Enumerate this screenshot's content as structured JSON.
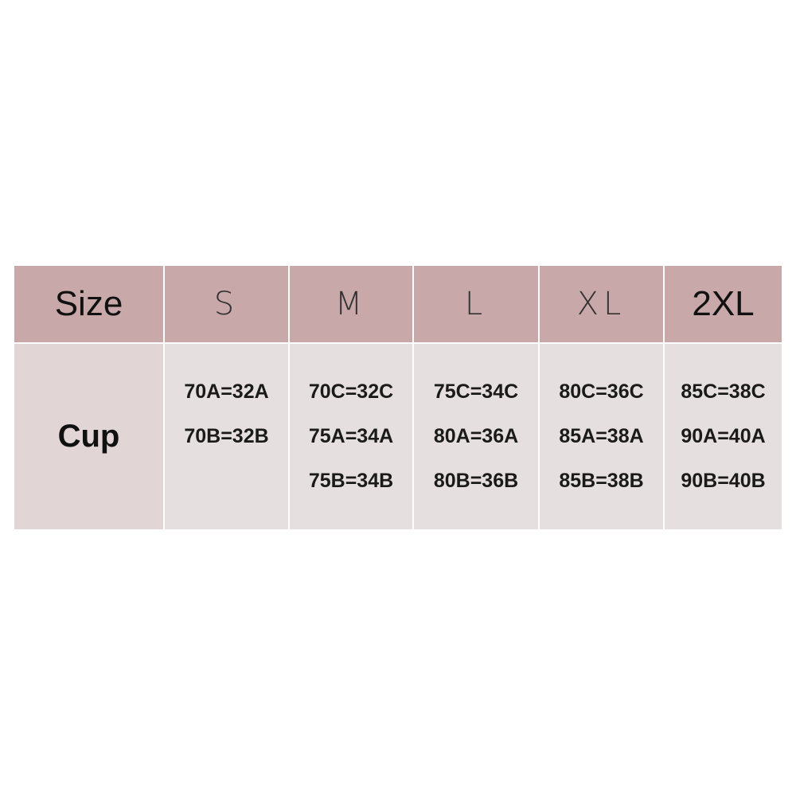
{
  "table": {
    "header": [
      "Size",
      "S",
      "M",
      "L",
      "XL",
      "2XL"
    ],
    "rows": [
      {
        "label": "Cup",
        "cells": [
          [
            "70A=32A",
            "70B=32B"
          ],
          [
            "70C=32C",
            "75A=34A",
            "75B=34B"
          ],
          [
            "75C=34C",
            "80A=36A",
            "80B=36B"
          ],
          [
            "80C=36C",
            "85A=38A",
            "85B=38B"
          ],
          [
            "85C=38C",
            "90A=40A",
            "90B=40B"
          ]
        ]
      }
    ]
  }
}
